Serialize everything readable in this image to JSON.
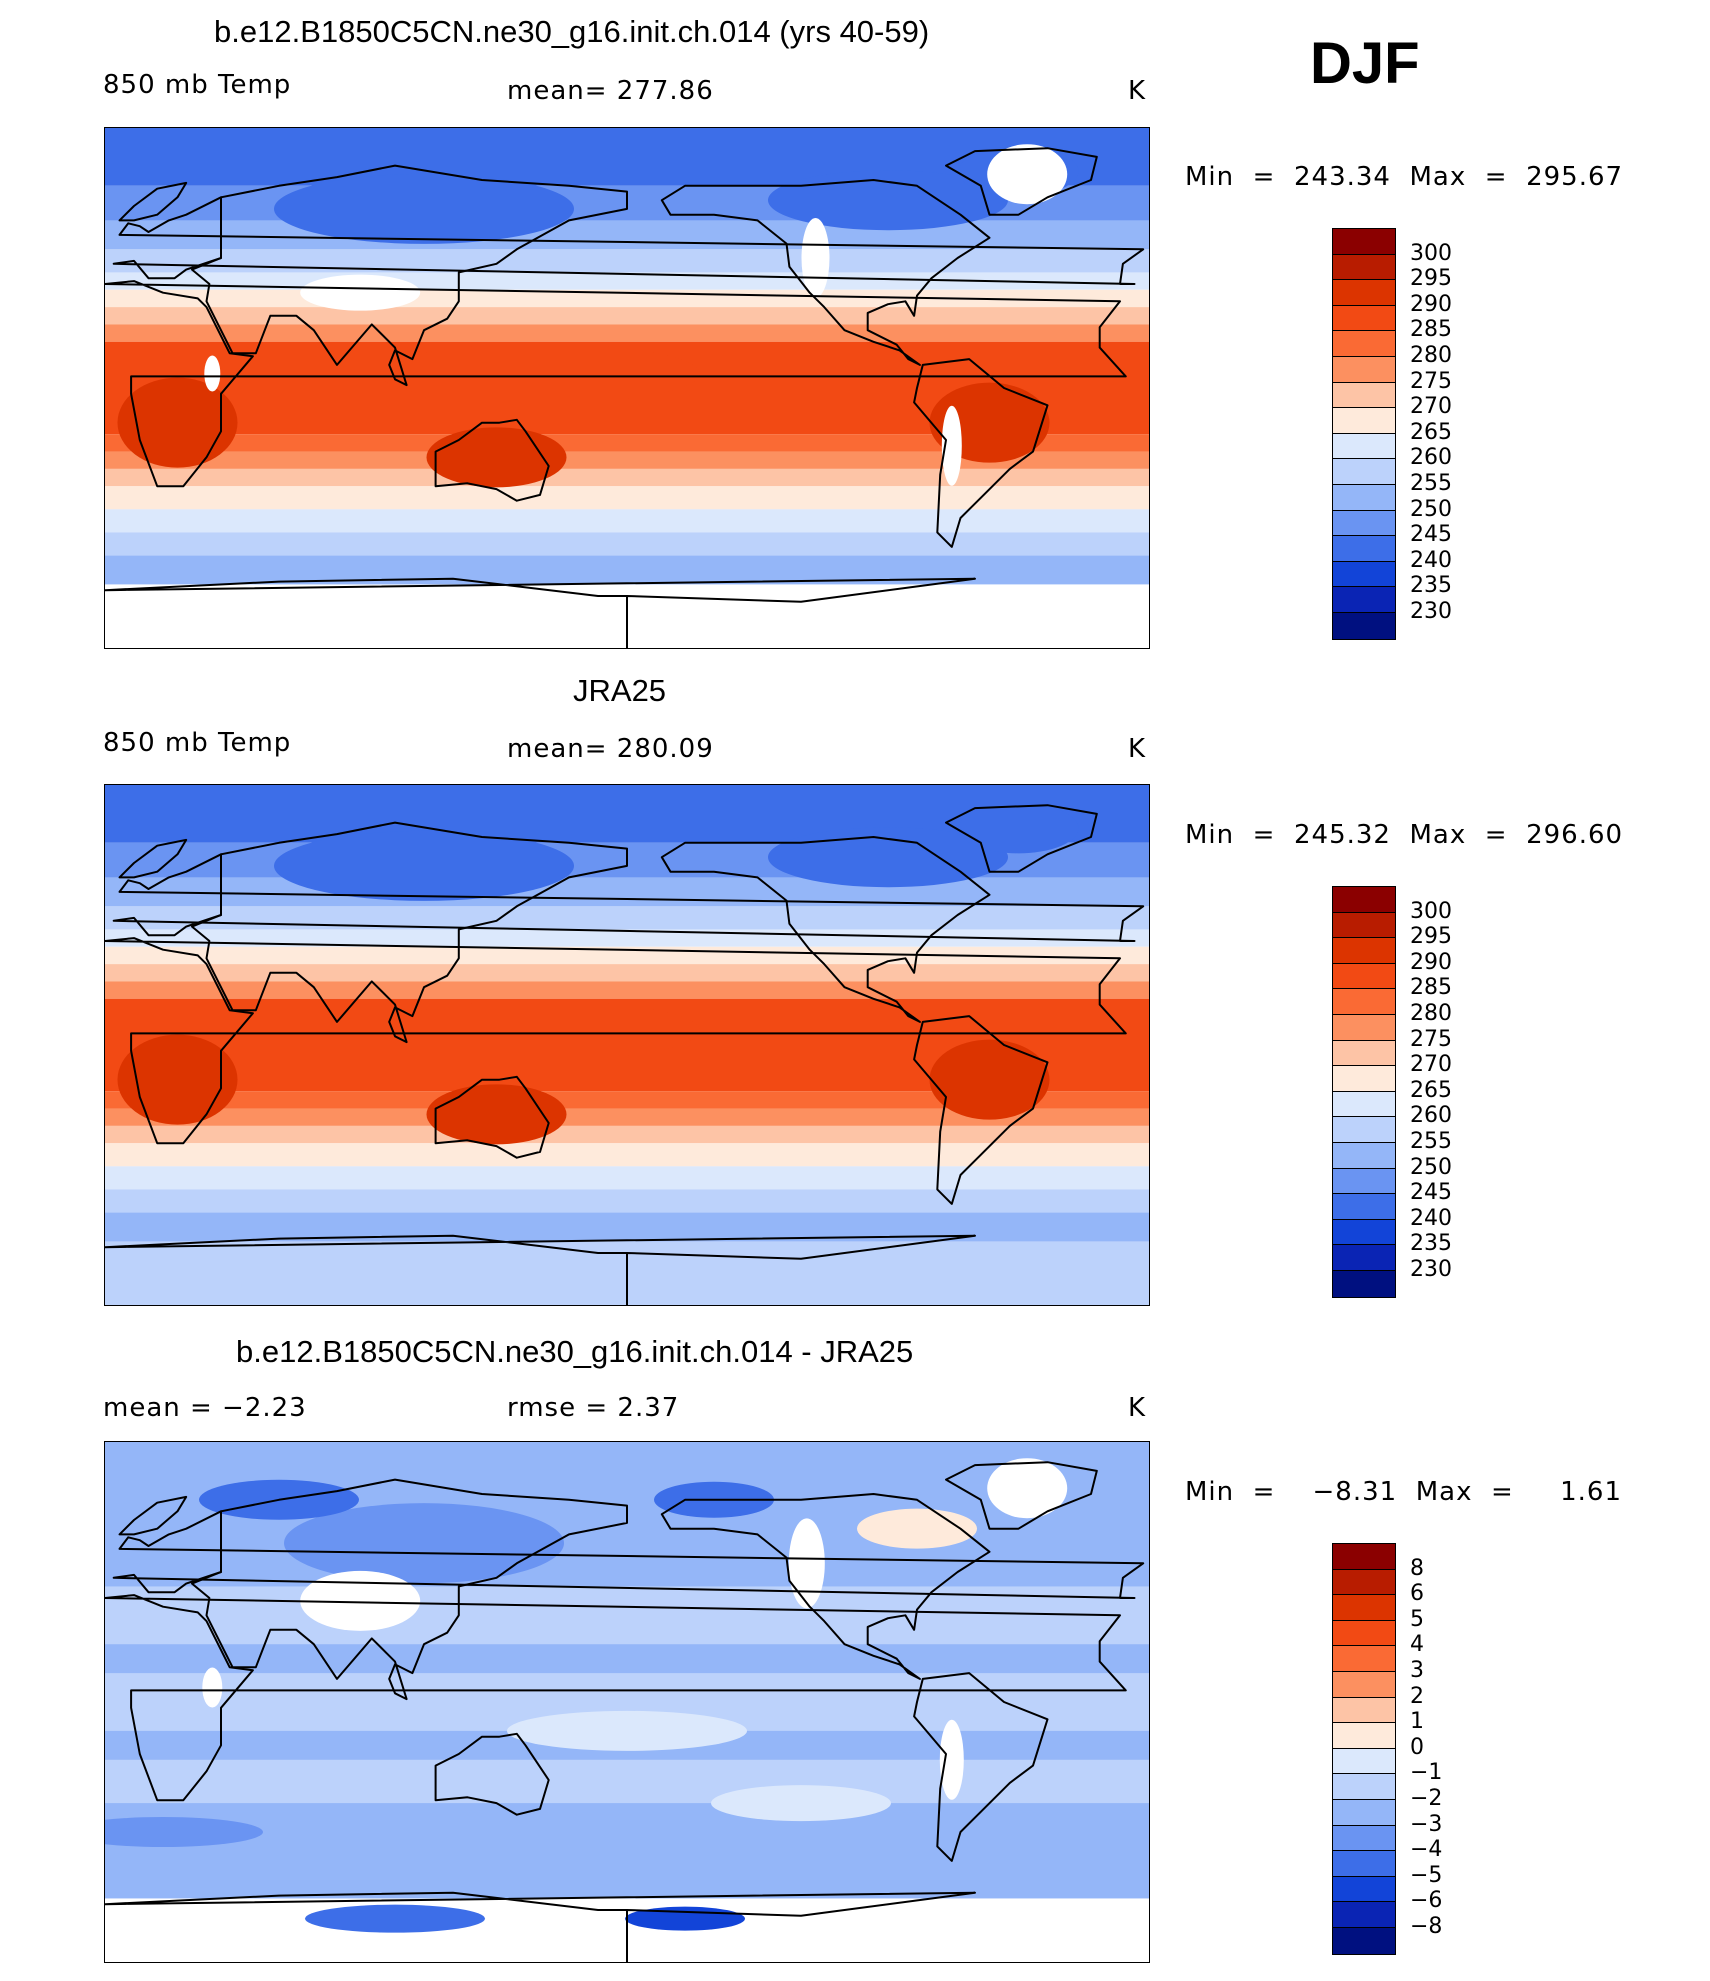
{
  "season": "DJF",
  "panels": [
    {
      "id": "model",
      "title": "b.e12.B1850C5CN.ne30_g16.init.ch.014 (yrs 40-59)",
      "left_label": "850 mb Temp",
      "center_label": "mean=  277.86",
      "units": "K",
      "minmax": "Min  =  243.34  Max  =  295.67",
      "colorbar": {
        "labels": [
          "300",
          "295",
          "290",
          "285",
          "280",
          "275",
          "270",
          "265",
          "260",
          "255",
          "250",
          "245",
          "240",
          "235",
          "230"
        ],
        "colors": [
          "#8b0000",
          "#b81c00",
          "#dc3400",
          "#f24a14",
          "#fa6a34",
          "#fc9060",
          "#fdc4a6",
          "#feeadb",
          "#dbe8fc",
          "#bcd2fb",
          "#94b6f8",
          "#6a94f2",
          "#3d6ee8",
          "#1244d8",
          "#0a24b4",
          "#001080"
        ]
      },
      "map_style": "model_temp"
    },
    {
      "id": "obs",
      "title": "JRA25",
      "left_label": "850 mb Temp",
      "center_label": "mean=  280.09",
      "units": "K",
      "minmax": "Min  =  245.32  Max  =  296.60",
      "colorbar": {
        "labels": [
          "300",
          "295",
          "290",
          "285",
          "280",
          "275",
          "270",
          "265",
          "260",
          "255",
          "250",
          "245",
          "240",
          "235",
          "230"
        ],
        "colors": [
          "#8b0000",
          "#b81c00",
          "#dc3400",
          "#f24a14",
          "#fa6a34",
          "#fc9060",
          "#fdc4a6",
          "#feeadb",
          "#dbe8fc",
          "#bcd2fb",
          "#94b6f8",
          "#6a94f2",
          "#3d6ee8",
          "#1244d8",
          "#0a24b4",
          "#001080"
        ]
      },
      "map_style": "obs_temp"
    },
    {
      "id": "diff",
      "title": "b.e12.B1850C5CN.ne30_g16.init.ch.014 - JRA25",
      "left_label": "mean  =    −2.23",
      "center_label": "rmse  =     2.37",
      "units": "K",
      "minmax": "Min  =    −8.31  Max  =     1.61",
      "colorbar": {
        "labels": [
          "8",
          "6",
          "5",
          "4",
          "3",
          "2",
          "1",
          "0",
          "−1",
          "−2",
          "−3",
          "−4",
          "−5",
          "−6",
          "−8"
        ],
        "colors": [
          "#8b0000",
          "#b81c00",
          "#dc3400",
          "#f24a14",
          "#fa6a34",
          "#fc9060",
          "#fdc4a6",
          "#feeadb",
          "#dbe8fc",
          "#bcd2fb",
          "#94b6f8",
          "#6a94f2",
          "#3d6ee8",
          "#1244d8",
          "#0a24b4",
          "#001080"
        ]
      },
      "map_style": "diff"
    }
  ]
}
